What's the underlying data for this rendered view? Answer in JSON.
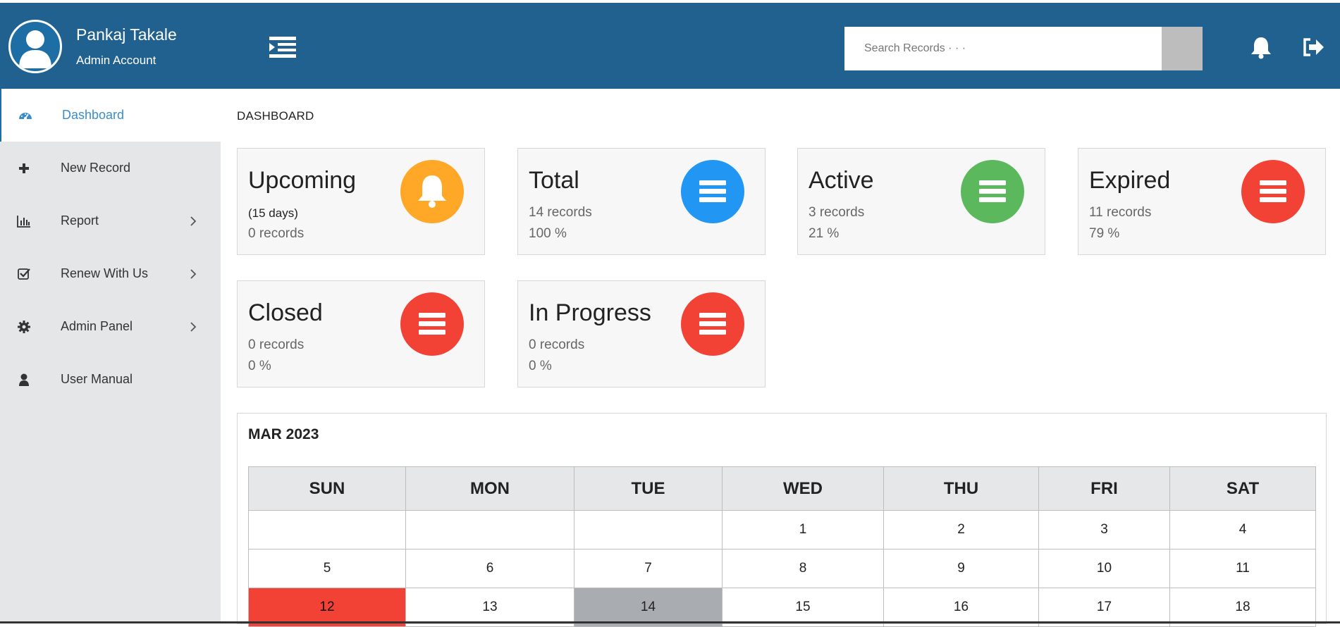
{
  "header": {
    "user_name": "Pankaj Takale",
    "user_role": "Admin Account",
    "search_placeholder": "Search Records · · ·",
    "colors": {
      "bar": "#21618f",
      "search_button": "#bdbdbd"
    },
    "icons": [
      "menu-toggle-icon",
      "bell-icon",
      "logout-icon",
      "user-avatar-icon"
    ]
  },
  "sidebar": {
    "items": [
      {
        "label": "Dashboard",
        "icon": "dashboard-icon",
        "active": true,
        "has_submenu": false
      },
      {
        "label": "New Record",
        "icon": "plus-icon",
        "active": false,
        "has_submenu": false
      },
      {
        "label": "Report",
        "icon": "bar-chart-icon",
        "active": false,
        "has_submenu": true
      },
      {
        "label": "Renew With Us",
        "icon": "checkbox-icon",
        "active": false,
        "has_submenu": true
      },
      {
        "label": "Admin Panel",
        "icon": "gear-icon",
        "active": false,
        "has_submenu": true
      },
      {
        "label": "User Manual",
        "icon": "user-icon",
        "active": false,
        "has_submenu": false
      }
    ]
  },
  "main": {
    "breadcrumb": "DASHBOARD",
    "cards": [
      {
        "title": "Upcoming",
        "line1": "(15 days)",
        "line2": "0 records",
        "icon": "bell-icon",
        "color": "#ffa726"
      },
      {
        "title": "Total",
        "line1": "14 records",
        "line2": "100 %",
        "icon": "list-icon",
        "color": "#2196f3"
      },
      {
        "title": "Active",
        "line1": "3 records",
        "line2": "21 %",
        "icon": "list-icon",
        "color": "#5cb85c"
      },
      {
        "title": "Expired",
        "line1": "11 records",
        "line2": "79 %",
        "icon": "list-icon",
        "color": "#f24236"
      },
      {
        "title": "Closed",
        "line1": "0 records",
        "line2": "0 %",
        "icon": "list-icon",
        "color": "#f24236"
      },
      {
        "title": "In Progress",
        "line1": "0 records",
        "line2": "0 %",
        "icon": "list-icon",
        "color": "#f24236"
      }
    ],
    "calendar": {
      "title": "MAR 2023",
      "days": [
        "SUN",
        "MON",
        "TUE",
        "WED",
        "THU",
        "FRI",
        "SAT"
      ],
      "weeks": [
        [
          "",
          "",
          "",
          "1",
          "2",
          "3",
          "4"
        ],
        [
          "5",
          "6",
          "7",
          "8",
          "9",
          "10",
          "11"
        ],
        [
          "12",
          "13",
          "14",
          "15",
          "16",
          "17",
          "18"
        ]
      ],
      "today": "12",
      "selected": "14",
      "colors": {
        "today": "#f24236",
        "selected": "#a9adb2",
        "header": "#e6e7e9"
      }
    }
  }
}
